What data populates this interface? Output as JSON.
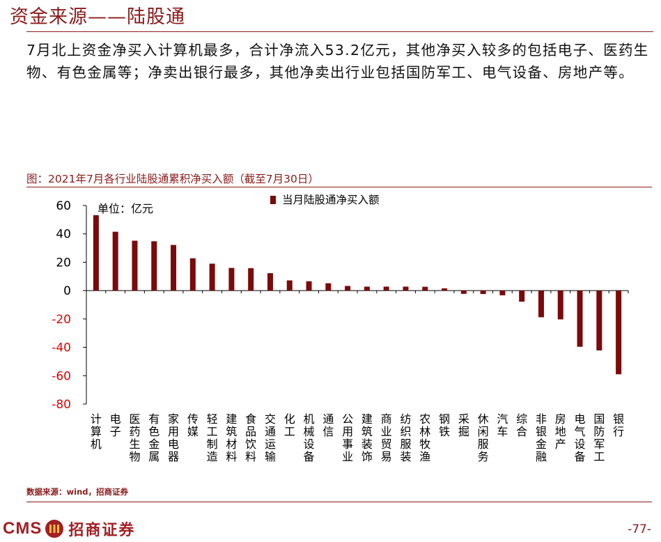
{
  "page": {
    "title": "资金来源——陆股通",
    "body_text": "7月北上资金净买入计算机最多，合计净流入53.2亿元，其他净买入较多的包括电子、医药生物、有色金属等；净卖出银行最多，其他净卖出行业包括国防军工、电气设备、房地产等。",
    "chart_caption": "图：2021年7月各行业陆股通累积净买入额（截至7月30日）",
    "source": "数据来源：wind，招商证券",
    "logo_text": "CMS",
    "logo_name": "招商证券",
    "page_number": "-77-"
  },
  "chart_data": {
    "type": "bar",
    "unit_label": "单位：亿元",
    "series": [
      {
        "name": "当月陆股通净买入额",
        "color": "#7B0A0A",
        "values": [
          53.2,
          41.5,
          35.2,
          34.8,
          32.2,
          22.8,
          19.0,
          16.0,
          15.8,
          12.3,
          7.2,
          6.6,
          5.2,
          3.3,
          2.8,
          2.8,
          2.8,
          2.7,
          1.6,
          -2.3,
          -2.4,
          -3.3,
          -7.8,
          -18.8,
          -20.3,
          -39.6,
          -42.2,
          -59.0
        ]
      }
    ],
    "categories": [
      "计算机",
      "电子",
      "医药生物",
      "有色金属",
      "家用电器",
      "传媒",
      "轻工制造",
      "建筑材料",
      "食品饮料",
      "交通运输",
      "化工",
      "机械设备",
      "通信",
      "公用事业",
      "建筑装饰",
      "商业贸易",
      "纺织服装",
      "农林牧渔",
      "钢铁",
      "采掘",
      "休闲服务",
      "汽车",
      "综合",
      "非银金融",
      "房地产",
      "电气设备",
      "国防军工",
      "银行"
    ],
    "ylim": [
      -80,
      60
    ],
    "yticks": [
      60,
      40,
      20,
      0,
      -20,
      -40,
      -60,
      -80
    ],
    "legend_position": "top-center",
    "negative_tick_color": "#E00000"
  }
}
